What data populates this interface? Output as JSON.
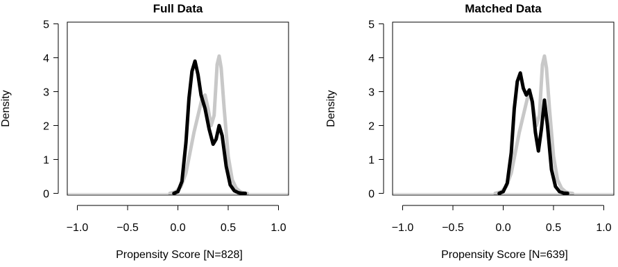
{
  "chart_data": [
    {
      "type": "line",
      "title": "Full Data",
      "xlabel": "Propensity Score [N=828]",
      "ylabel": "Density",
      "xlim": [
        -1.1,
        1.1
      ],
      "ylim": [
        -0.05,
        5.05
      ],
      "xticks": [
        -1.0,
        -0.5,
        0.0,
        0.5,
        1.0
      ],
      "xtick_labels": [
        "−1.0",
        "−0.5",
        "0.0",
        "0.5",
        "1.0"
      ],
      "yticks": [
        0,
        1,
        2,
        3,
        4,
        5
      ],
      "ytick_labels": [
        "0",
        "1",
        "2",
        "3",
        "4",
        "5"
      ],
      "zero_line": true,
      "grid": false,
      "series": [
        {
          "color": "#c8c8c8",
          "x": [
            -0.08,
            -0.02,
            0.03,
            0.08,
            0.12,
            0.16,
            0.2,
            0.24,
            0.27,
            0.3,
            0.33,
            0.36,
            0.39,
            0.41,
            0.43,
            0.46,
            0.5,
            0.54,
            0.58,
            0.62,
            0.66,
            0.69
          ],
          "y": [
            0.0,
            0.05,
            0.2,
            0.6,
            1.2,
            1.8,
            2.3,
            2.8,
            2.9,
            2.5,
            2.0,
            2.3,
            3.8,
            4.05,
            3.7,
            2.5,
            1.1,
            0.4,
            0.15,
            0.05,
            0.01,
            0.0
          ]
        },
        {
          "color": "#000000",
          "x": [
            -0.04,
            0.0,
            0.04,
            0.08,
            0.11,
            0.14,
            0.17,
            0.2,
            0.23,
            0.27,
            0.31,
            0.35,
            0.38,
            0.41,
            0.44,
            0.48,
            0.52,
            0.56,
            0.6,
            0.64,
            0.67
          ],
          "y": [
            0.0,
            0.05,
            0.35,
            1.5,
            2.8,
            3.6,
            3.9,
            3.5,
            2.9,
            2.5,
            1.9,
            1.45,
            1.6,
            2.0,
            1.7,
            0.8,
            0.25,
            0.08,
            0.02,
            0.0,
            0.0
          ]
        }
      ]
    },
    {
      "type": "line",
      "title": "Matched Data",
      "xlabel": "Propensity Score [N=639]",
      "ylabel": "Density",
      "xlim": [
        -1.1,
        1.1
      ],
      "ylim": [
        -0.05,
        5.05
      ],
      "xticks": [
        -1.0,
        -0.5,
        0.0,
        0.5,
        1.0
      ],
      "xtick_labels": [
        "−1.0",
        "−0.5",
        "0.0",
        "0.5",
        "1.0"
      ],
      "yticks": [
        0,
        1,
        2,
        3,
        4,
        5
      ],
      "ytick_labels": [
        "0",
        "1",
        "2",
        "3",
        "4",
        "5"
      ],
      "zero_line": true,
      "grid": false,
      "series": [
        {
          "color": "#c8c8c8",
          "x": [
            -0.08,
            -0.02,
            0.03,
            0.08,
            0.12,
            0.16,
            0.2,
            0.24,
            0.27,
            0.3,
            0.33,
            0.36,
            0.39,
            0.41,
            0.43,
            0.46,
            0.5,
            0.54,
            0.58,
            0.62,
            0.66,
            0.69
          ],
          "y": [
            0.0,
            0.05,
            0.2,
            0.6,
            1.2,
            1.8,
            2.3,
            2.8,
            2.9,
            2.5,
            2.0,
            2.3,
            3.8,
            4.05,
            3.7,
            2.5,
            1.1,
            0.4,
            0.15,
            0.05,
            0.01,
            0.0
          ]
        },
        {
          "color": "#000000",
          "x": [
            -0.04,
            0.0,
            0.04,
            0.08,
            0.11,
            0.14,
            0.17,
            0.2,
            0.23,
            0.26,
            0.29,
            0.32,
            0.35,
            0.38,
            0.41,
            0.44,
            0.48,
            0.52,
            0.56,
            0.6,
            0.64
          ],
          "y": [
            0.0,
            0.05,
            0.3,
            1.2,
            2.5,
            3.3,
            3.55,
            3.1,
            2.9,
            3.05,
            2.7,
            1.8,
            1.25,
            1.9,
            2.75,
            2.0,
            0.7,
            0.2,
            0.05,
            0.01,
            0.0
          ]
        }
      ]
    }
  ]
}
